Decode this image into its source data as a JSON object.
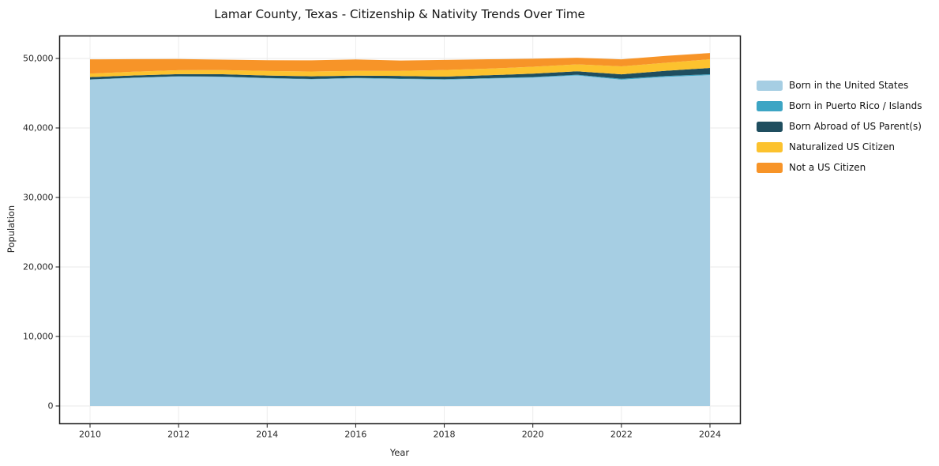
{
  "title": "Lamar County, Texas - Citizenship & Nativity Trends Over Time",
  "axes": {
    "xlabel": "Year",
    "ylabel": "Population"
  },
  "chart_data": {
    "type": "area",
    "stacked": true,
    "title": "Lamar County, Texas - Citizenship & Nativity Trends Over Time",
    "xlabel": "Year",
    "ylabel": "Population",
    "grid": true,
    "legend_position": "right-outside",
    "x": [
      2010,
      2011,
      2012,
      2013,
      2014,
      2015,
      2016,
      2017,
      2018,
      2019,
      2020,
      2021,
      2022,
      2023,
      2024
    ],
    "x_ticks": [
      2010,
      2012,
      2014,
      2016,
      2018,
      2020,
      2022,
      2024
    ],
    "y_ticks": [
      {
        "value": 0,
        "label": "0"
      },
      {
        "value": 10000,
        "label": "10,000"
      },
      {
        "value": 20000,
        "label": "20,000"
      },
      {
        "value": 30000,
        "label": "30,000"
      },
      {
        "value": 40000,
        "label": "40,000"
      },
      {
        "value": 50000,
        "label": "50,000"
      }
    ],
    "ylim": [
      0,
      53000
    ],
    "series": [
      {
        "name": "Born in the United States",
        "color": "#a6cee3",
        "values": [
          46950,
          47200,
          47400,
          47350,
          47150,
          47000,
          47150,
          47050,
          46950,
          47100,
          47250,
          47550,
          46950,
          47350,
          47600
        ]
      },
      {
        "name": "Born in Puerto Rico / Islands",
        "color": "#3da5c4",
        "values": [
          40,
          40,
          40,
          40,
          40,
          50,
          50,
          50,
          60,
          60,
          80,
          100,
          120,
          120,
          130
        ]
      },
      {
        "name": "Born Abroad of US Parent(s)",
        "color": "#1f4e5f",
        "values": [
          330,
          310,
          300,
          340,
          350,
          380,
          330,
          380,
          380,
          420,
          480,
          500,
          650,
          750,
          900
        ]
      },
      {
        "name": "Naturalized US Citizen",
        "color": "#fcc22e",
        "values": [
          500,
          550,
          570,
          600,
          650,
          700,
          680,
          720,
          950,
          950,
          1000,
          1000,
          1150,
          1150,
          1250
        ]
      },
      {
        "name": "Not a US Citizen",
        "color": "#f79428",
        "values": [
          2050,
          1800,
          1600,
          1500,
          1550,
          1600,
          1650,
          1500,
          1450,
          1350,
          1150,
          950,
          1000,
          1000,
          900
        ]
      }
    ]
  }
}
